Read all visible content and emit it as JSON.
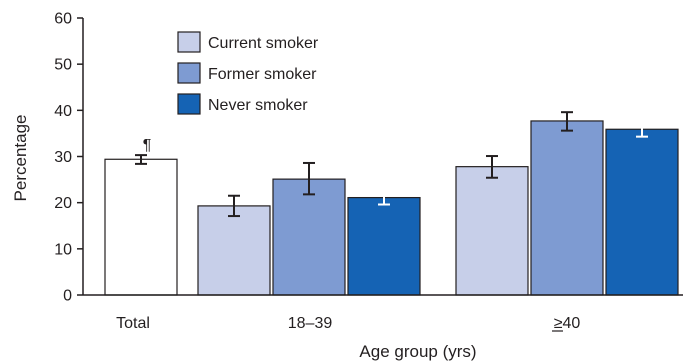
{
  "chart_data": {
    "type": "bar",
    "xlabel": "Age group (yrs)",
    "ylabel": "Percentage",
    "ylim": [
      0,
      60
    ],
    "yticks": [
      "0",
      "10",
      "20",
      "30",
      "40",
      "50",
      "60"
    ],
    "groups": [
      {
        "label": "Total",
        "underline_chars": 0,
        "bars": [
          {
            "series": "Total",
            "value": 29.4,
            "ci": [
              28.4,
              30.3
            ],
            "footnote": "¶"
          }
        ]
      },
      {
        "label": "18–39",
        "underline_chars": 0,
        "bars": [
          {
            "series": "Current smoker",
            "value": 19.3,
            "ci": [
              17.1,
              21.5
            ]
          },
          {
            "series": "Former smoker",
            "value": 25.1,
            "ci": [
              21.8,
              28.6
            ]
          },
          {
            "series": "Never smoker",
            "value": 21.1,
            "ci": [
              19.6,
              22.4
            ]
          }
        ]
      },
      {
        "label": "≥40",
        "underline_chars": 1,
        "bars": [
          {
            "series": "Current smoker",
            "value": 27.8,
            "ci": [
              25.4,
              30.1
            ]
          },
          {
            "series": "Former smoker",
            "value": 37.7,
            "ci": [
              35.6,
              39.6
            ]
          },
          {
            "series": "Never smoker",
            "value": 35.9,
            "ci": [
              34.3,
              37.3
            ]
          }
        ]
      }
    ],
    "series": [
      {
        "name": "Current smoker",
        "color": "#c7cfe9",
        "error_color": "#231f20"
      },
      {
        "name": "Former smoker",
        "color": "#7e9bd2",
        "error_color": "#231f20"
      },
      {
        "name": "Never smoker",
        "color": "#1563b4",
        "error_color": "#ffffff"
      }
    ],
    "total_series": {
      "name": "Total",
      "color": "#ffffff",
      "error_color": "#231f20"
    },
    "legend": {
      "entries": [
        "Current smoker",
        "Former smoker",
        "Never smoker"
      ],
      "placement": "top-left"
    },
    "grid": false
  }
}
